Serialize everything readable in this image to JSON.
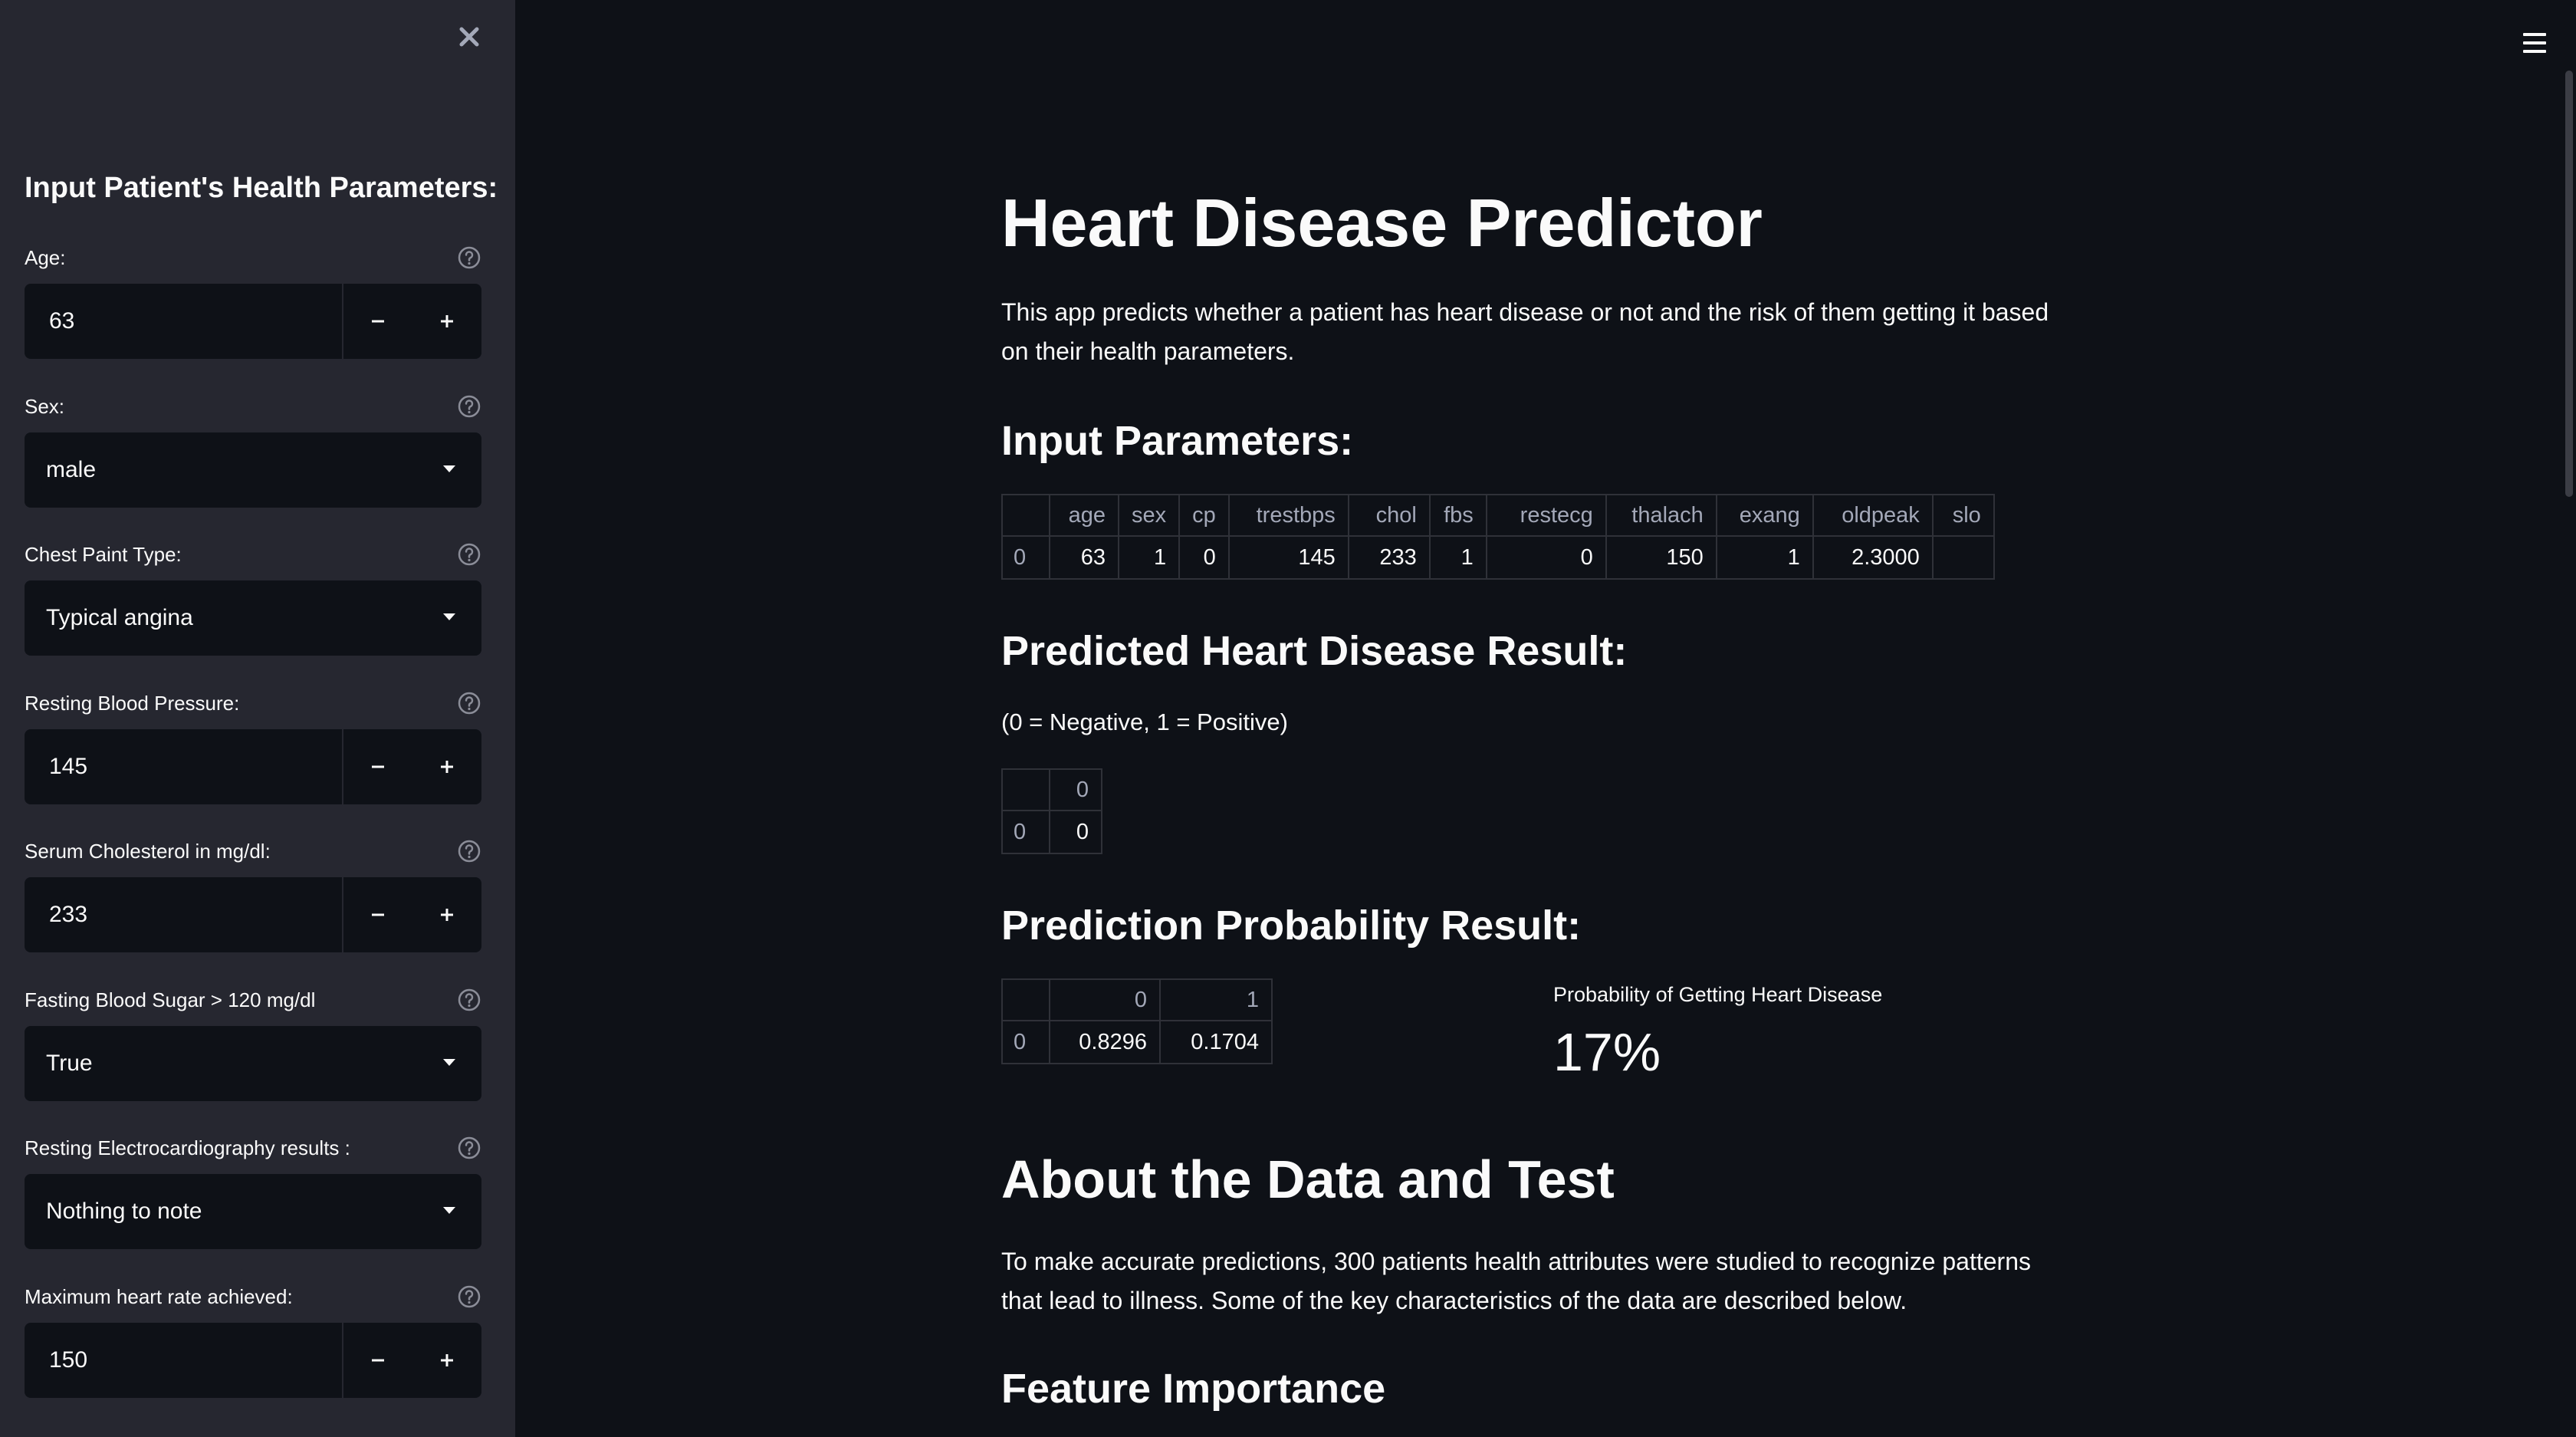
{
  "sidebar": {
    "header": "Input Patient's Health Parameters:",
    "fields": [
      {
        "label": "Age:",
        "type": "number",
        "value": "63"
      },
      {
        "label": "Sex:",
        "type": "select",
        "value": "male"
      },
      {
        "label": "Chest Paint Type:",
        "type": "select",
        "value": "Typical angina"
      },
      {
        "label": "Resting Blood Pressure:",
        "type": "number",
        "value": "145"
      },
      {
        "label": "Serum Cholesterol in mg/dl:",
        "type": "number",
        "value": "233"
      },
      {
        "label": "Fasting Blood Sugar > 120 mg/dl",
        "type": "select",
        "value": "True"
      },
      {
        "label": "Resting Electrocardiography results :",
        "type": "select",
        "value": "Nothing to note"
      },
      {
        "label": "Maximum heart rate achieved:",
        "type": "number",
        "value": "150"
      }
    ],
    "stepper": {
      "minus": "−",
      "plus": "+"
    }
  },
  "main": {
    "title": "Heart Disease Predictor",
    "description": "This app predicts whether a patient has heart disease or not and the risk of them getting it based on their health parameters.",
    "input_header": "Input Parameters:",
    "input_table": {
      "columns": [
        "",
        "age",
        "sex",
        "cp",
        "trestbps",
        "chol",
        "fbs",
        "restecg",
        "thalach",
        "exang",
        "oldpeak",
        "slo"
      ],
      "rows": [
        [
          "0",
          "63",
          "1",
          "0",
          "145",
          "233",
          "1",
          "0",
          "150",
          "1",
          "2.3000",
          ""
        ]
      ]
    },
    "result_header": "Predicted Heart Disease Result:",
    "result_note": "(0 = Negative, 1 = Positive)",
    "result_table": {
      "columns": [
        "",
        "0"
      ],
      "rows": [
        [
          "0",
          "0"
        ]
      ]
    },
    "prob_header": "Prediction Probability Result:",
    "prob_table": {
      "columns": [
        "",
        "0",
        "1"
      ],
      "rows": [
        [
          "0",
          "0.8296",
          "0.1704"
        ]
      ]
    },
    "metric": {
      "label": "Probability of Getting Heart Disease",
      "value": "17%"
    },
    "about_header": "About the Data and Test",
    "about_text": "To make accurate predictions, 300 patients health attributes were studied to recognize patterns that lead to illness. Some of the key characteristics of the data are described below.",
    "feature_header": "Feature Importance"
  },
  "icons": {
    "close": "close-icon",
    "help": "help-circle-icon",
    "menu": "hamburger-menu-icon",
    "dropdown": "chevron-down-icon"
  },
  "colors": {
    "sidebar_bg": "#262730",
    "main_bg": "#0e1117",
    "text": "#fafafa",
    "muted": "#a3a8b8"
  }
}
